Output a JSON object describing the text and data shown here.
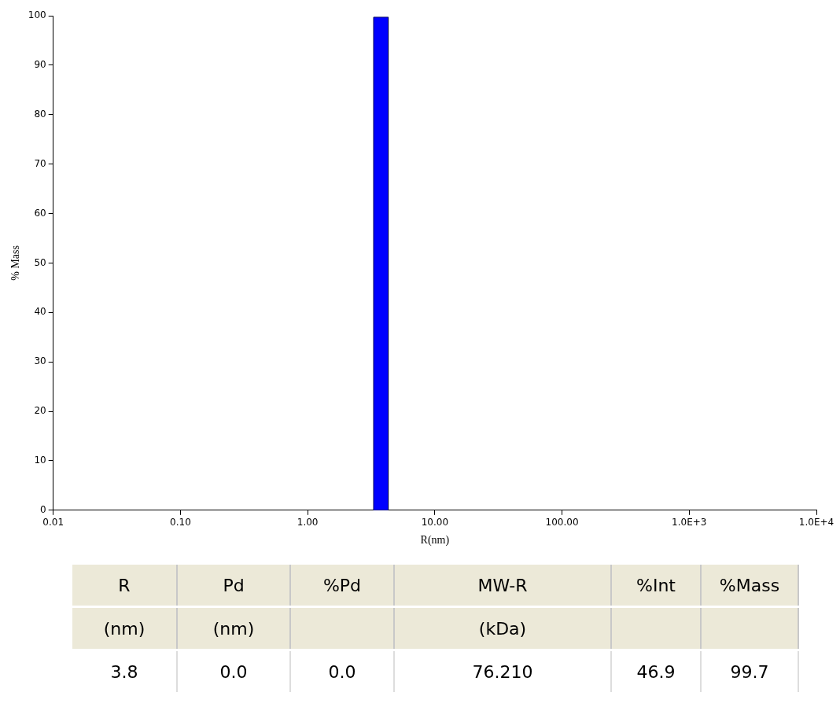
{
  "chart_data": {
    "type": "histogram",
    "xlabel": "R(nm)",
    "ylabel": "% Mass",
    "bins": [
      3.3,
      4.3
    ],
    "values": [
      99.7
    ],
    "color": "#0000ff",
    "log": "x",
    "xlim": [
      0.01,
      10000
    ],
    "xticks": [
      {
        "value": 0.01,
        "label": "0.01"
      },
      {
        "value": 0.1,
        "label": "0.10"
      },
      {
        "value": 1,
        "label": "1.00"
      },
      {
        "value": 10,
        "label": "10.00"
      },
      {
        "value": 100,
        "label": "100.00"
      },
      {
        "value": 1000,
        "label": "1.0E+3"
      },
      {
        "value": 10000,
        "label": "1.0E+4"
      }
    ],
    "ylim": [
      0,
      100
    ],
    "yticks": [
      0,
      10,
      20,
      30,
      40,
      50,
      60,
      70,
      80,
      90,
      100
    ],
    "grid": false,
    "legend": false,
    "annotations": [
      "R\n(nm)\n3.8",
      "Pd\n(nm)\n0.0",
      "%Pd\n\n0.0",
      "MW-R\n(kDa)\n76.210",
      "%Int\n\n46.9",
      "%Mass\n\n99.7"
    ]
  }
}
